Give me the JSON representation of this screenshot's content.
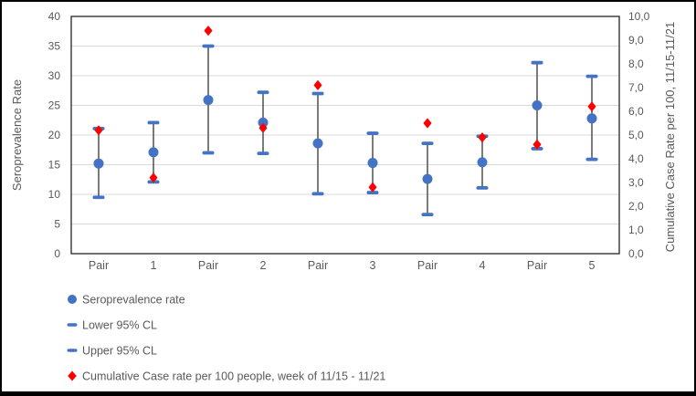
{
  "figure": {
    "background": "#FFFFFF",
    "border_color": "#000000"
  },
  "chart_data": {
    "type": "scatter",
    "title": "",
    "categories": [
      "Pair",
      "1",
      "Pair",
      "2",
      "Pair",
      "3",
      "Pair",
      "4",
      "Pair",
      "5"
    ],
    "left_axis": {
      "title": "Seroprevalence Rate",
      "min": 0,
      "max": 40,
      "step": 5,
      "tick_labels": [
        "40",
        "35",
        "30",
        "25",
        "20",
        "15",
        "10",
        "5",
        "0"
      ]
    },
    "right_axis": {
      "title": "Cumulative Case Rate per 100, 11/15-11/21",
      "min": 0,
      "max": 10,
      "step": 1,
      "tick_labels": [
        "10,0",
        "9,0",
        "8,0",
        "7,0",
        "6,0",
        "5,0",
        "4,0",
        "3,0",
        "2,0",
        "1,0",
        "0,0"
      ]
    },
    "grid": "horizontal",
    "legend_position": "bottom-left",
    "colors": {
      "series_blue": "#4472C4",
      "series_red": "#FF0000",
      "error_bar": "#595959",
      "gridline": "#D9D9D9",
      "plot_border": "#404040",
      "text": "#595959"
    },
    "series": [
      {
        "name": "Seroprevalence rate",
        "marker": "circle",
        "color": "#4472C4",
        "axis": "left",
        "values": [
          15.2,
          17.1,
          25.9,
          22.1,
          18.6,
          15.3,
          12.6,
          15.4,
          25.0,
          22.8
        ]
      },
      {
        "name": "Lower 95% CL",
        "marker": "dash",
        "color": "#4472C4",
        "axis": "left",
        "values": [
          9.5,
          12.1,
          17.0,
          16.9,
          10.1,
          10.3,
          6.6,
          11.1,
          17.7,
          15.9
        ]
      },
      {
        "name": "Upper 95% CL",
        "marker": "dash",
        "color": "#4472C4",
        "axis": "left",
        "values": [
          21.1,
          22.1,
          35.0,
          27.2,
          27.0,
          20.3,
          18.6,
          19.8,
          32.2,
          29.9
        ]
      },
      {
        "name": "Cumulative Case rate per 100 people, week of 11/15 - 11/21",
        "marker": "diamond",
        "color": "#FF0000",
        "axis": "right",
        "values": [
          5.2,
          3.2,
          9.4,
          5.3,
          7.1,
          2.8,
          5.5,
          4.9,
          4.6,
          6.2
        ]
      }
    ]
  }
}
